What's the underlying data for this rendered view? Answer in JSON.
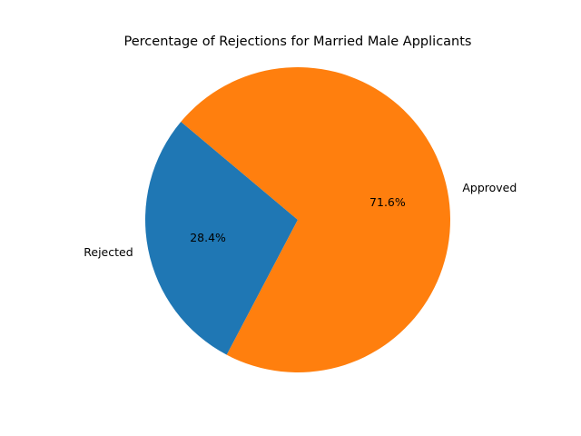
{
  "chart_data": {
    "type": "pie",
    "title": "Percentage of Rejections for Married Male Applicants",
    "slices": [
      {
        "label": "Rejected",
        "value": 28.4,
        "pct_label": "28.4%",
        "color": "#1f77b4"
      },
      {
        "label": "Approved",
        "value": 71.6,
        "pct_label": "71.6%",
        "color": "#ff7f0e"
      }
    ],
    "start_angle_deg": 140,
    "direction": "counterclockwise"
  }
}
